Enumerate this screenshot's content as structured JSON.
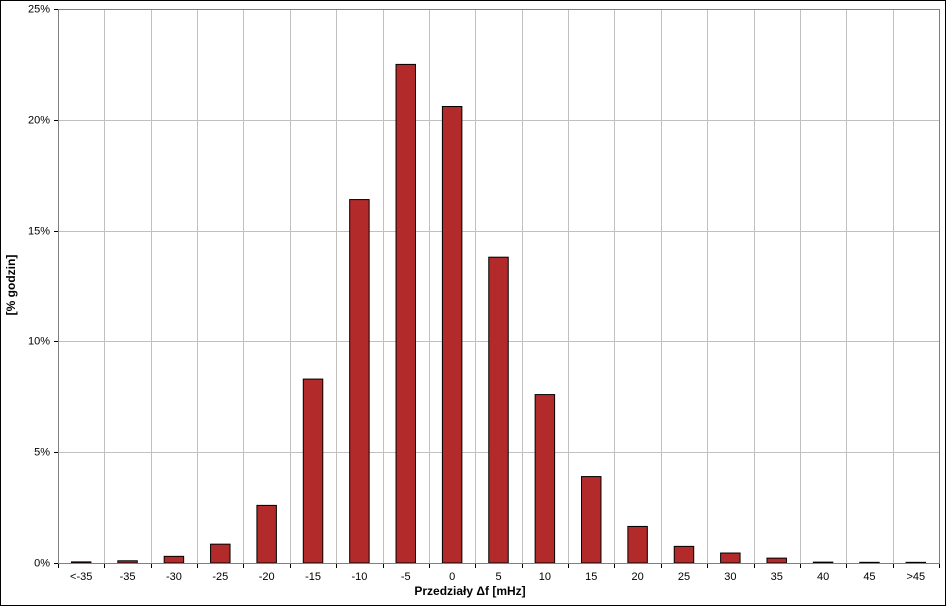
{
  "chart_data": {
    "type": "bar",
    "y_label": "[% godzin]",
    "x_label": "Przedziały Δf [mHz]",
    "categories": [
      "<-35",
      "-35",
      "-30",
      "-25",
      "-20",
      "-15",
      "-10",
      "-5",
      "0",
      "5",
      "10",
      "15",
      "20",
      "25",
      "30",
      "35",
      "40",
      "45",
      ">45"
    ],
    "values": [
      0.05,
      0.1,
      0.3,
      0.85,
      2.6,
      8.3,
      16.4,
      22.5,
      20.6,
      13.8,
      7.6,
      3.9,
      1.65,
      0.75,
      0.45,
      0.22,
      0.04,
      0.03,
      0.03
    ],
    "color": "#b22a2a",
    "ylim": [
      0,
      25
    ],
    "yticks": [
      {
        "value": 0,
        "label": "0%"
      },
      {
        "value": 5,
        "label": "5%"
      },
      {
        "value": 10,
        "label": "10%"
      },
      {
        "value": 15,
        "label": "15%"
      },
      {
        "value": 20,
        "label": "20%"
      },
      {
        "value": 25,
        "label": "25%"
      }
    ],
    "grid": true
  }
}
